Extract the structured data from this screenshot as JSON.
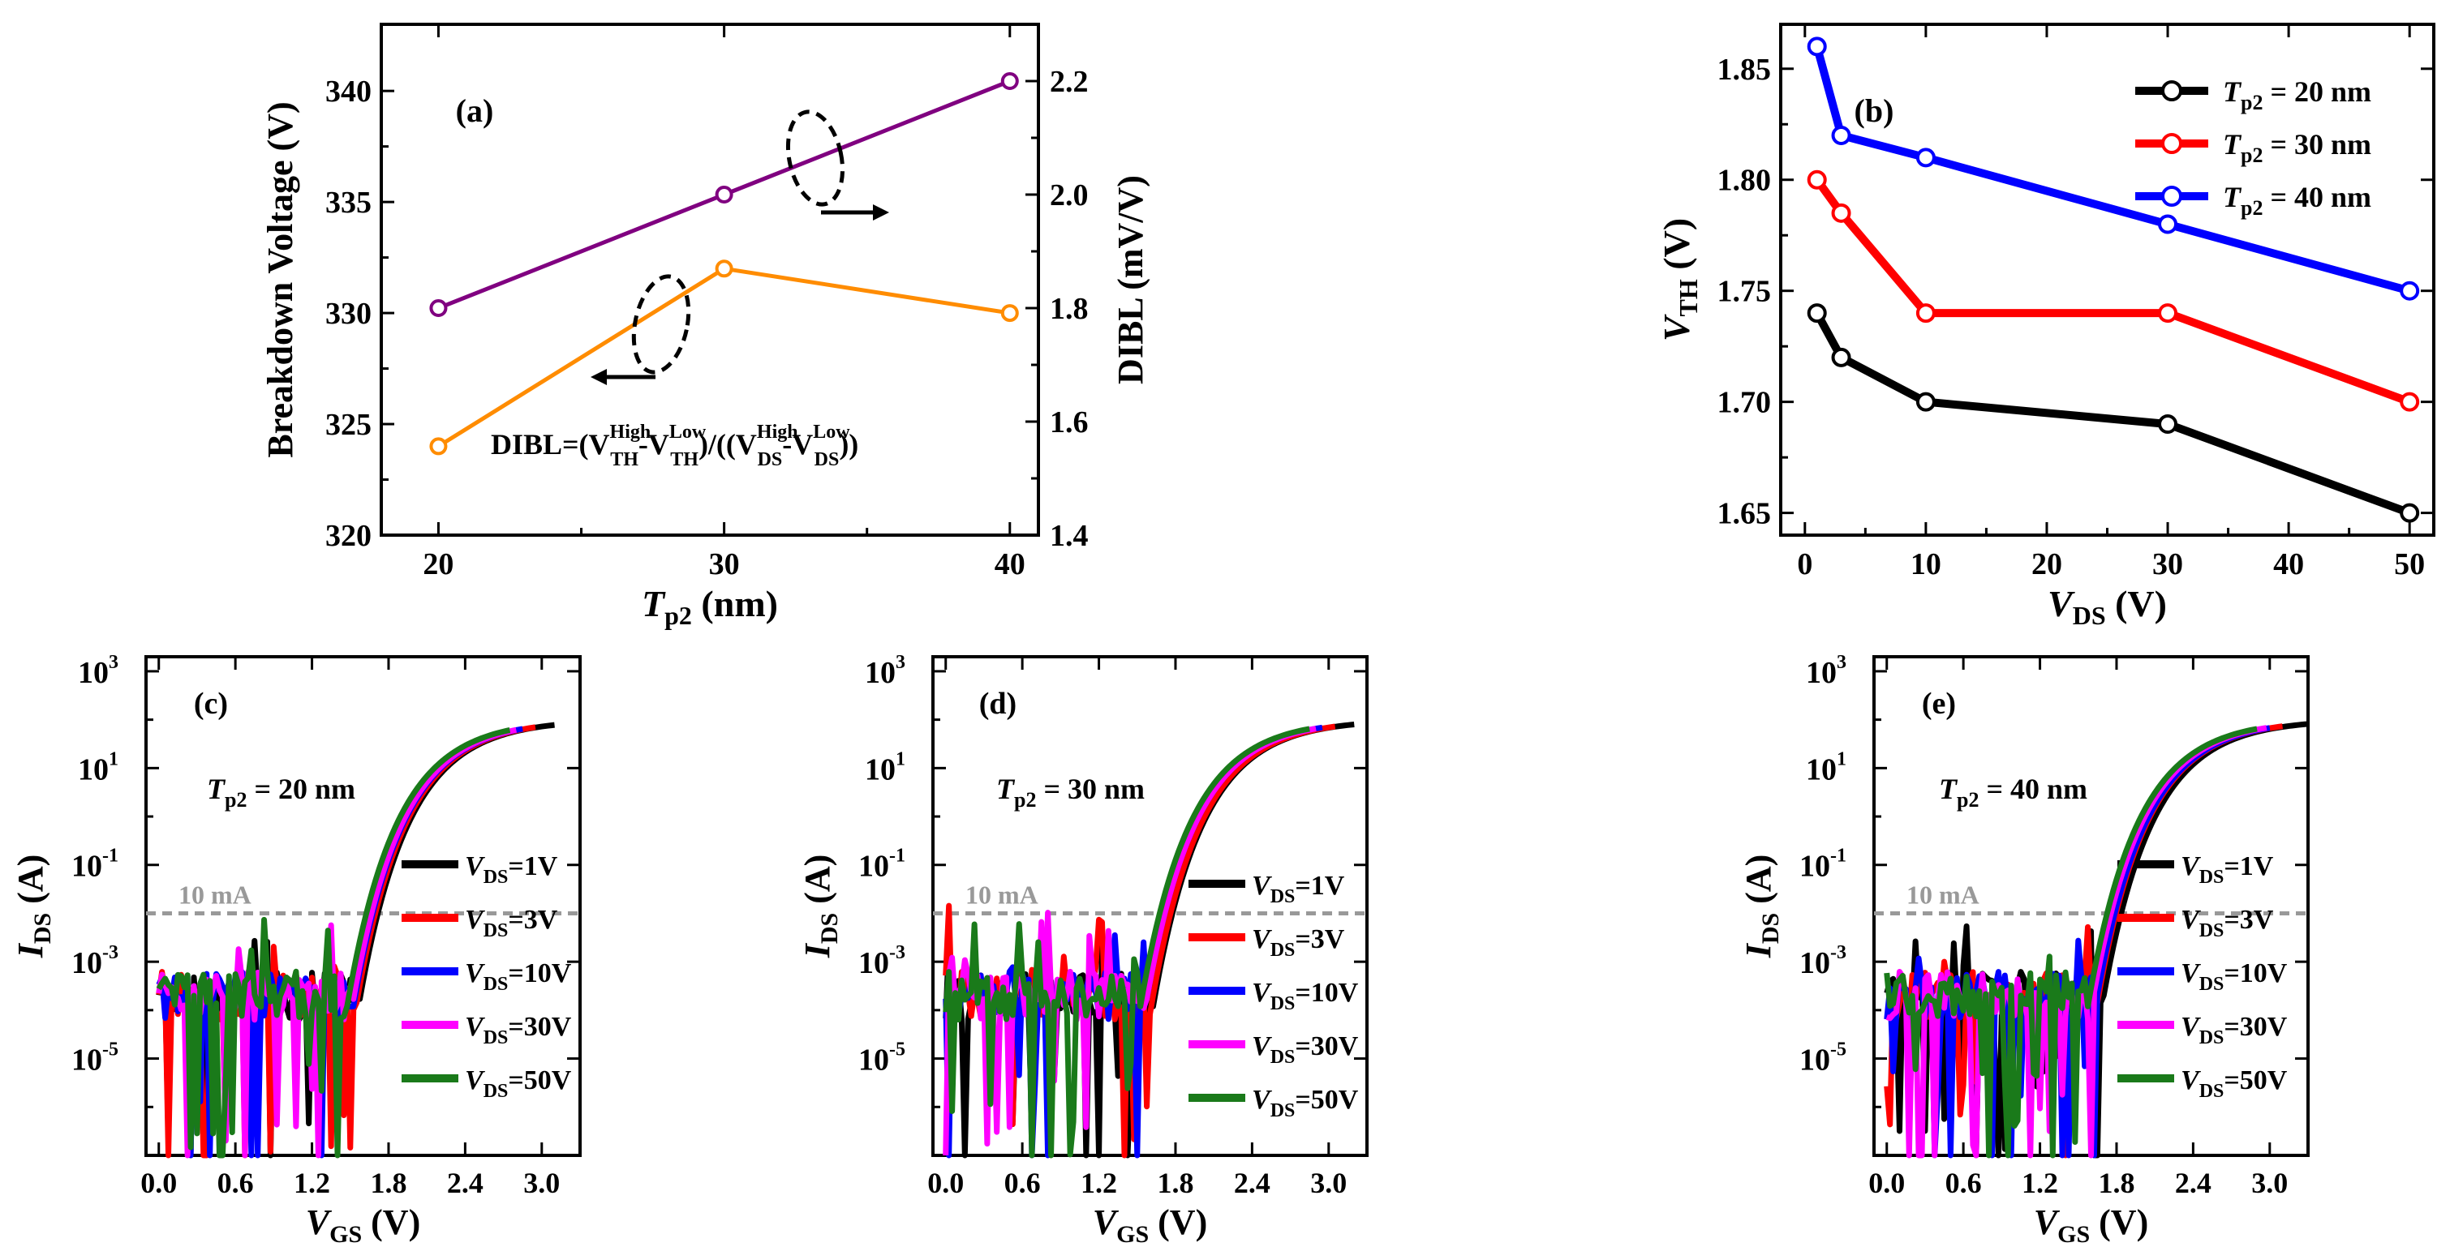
{
  "chart_data": [
    {
      "type": "line",
      "panel": "(a)",
      "xlabel": "T",
      "xlabel_sub": "p2",
      "xlabel_unit": " (nm)",
      "ylabel_left": "Breakdown Voltage (V)",
      "ylabel_right": "DIBL (mV/V)",
      "xlim": [
        18,
        41
      ],
      "ylim_left": [
        320,
        343
      ],
      "ylim_right": [
        1.4,
        2.3
      ],
      "xticks": [
        "20",
        "30",
        "40"
      ],
      "yticks_left": [
        "320",
        "325",
        "330",
        "335",
        "340"
      ],
      "yticks_right": [
        "1.4",
        "1.6",
        "1.8",
        "2.0",
        "2.2"
      ],
      "series": [
        {
          "name": "DIBL",
          "axis": "right",
          "color": "#800080",
          "x": [
            20,
            30,
            40
          ],
          "values": [
            1.8,
            2.0,
            2.2
          ]
        },
        {
          "name": "Breakdown Voltage",
          "axis": "left",
          "color": "#ff8c00",
          "x": [
            20,
            30,
            40
          ],
          "values": [
            324,
            332,
            330
          ]
        }
      ],
      "formula": {
        "prefix": "DIBL=(V",
        "th_high_sup": "High",
        "th_sub": "TH",
        "dash": "-V",
        "th_low_sup": "Low",
        "mid": ")/((V",
        "ds_high_sup": "High",
        "ds_sub": "DS",
        "ds_low_sup": "Low",
        "suffix": "))"
      }
    },
    {
      "type": "line",
      "panel": "(b)",
      "xlabel": "V",
      "xlabel_sub": "DS",
      "xlabel_unit": " (V)",
      "ylabel": "V",
      "ylabel_sub": "TH",
      "ylabel_unit": " (V)",
      "xlim": [
        -2,
        52
      ],
      "ylim": [
        1.64,
        1.87
      ],
      "xticks": [
        "0",
        "10",
        "20",
        "30",
        "40",
        "50"
      ],
      "yticks": [
        "1.65",
        "1.70",
        "1.75",
        "1.80",
        "1.85"
      ],
      "legend_prefix": "T",
      "legend_sub": "p2",
      "series": [
        {
          "name": " = 20 nm",
          "color": "#000000",
          "x": [
            1,
            3,
            10,
            30,
            50
          ],
          "values": [
            1.74,
            1.72,
            1.7,
            1.69,
            1.65
          ]
        },
        {
          "name": " = 30 nm",
          "color": "#ff0000",
          "x": [
            1,
            3,
            10,
            30,
            50
          ],
          "values": [
            1.8,
            1.785,
            1.74,
            1.74,
            1.7
          ]
        },
        {
          "name": " = 40 nm",
          "color": "#0000ff",
          "x": [
            1,
            3,
            10,
            30,
            50
          ],
          "values": [
            1.86,
            1.82,
            1.81,
            1.78,
            1.75
          ]
        }
      ]
    },
    {
      "type": "line",
      "panel": "(c)",
      "scale": "log",
      "seed": 7,
      "annotation": {
        "prefix": "T",
        "sub": "p2",
        "text": " = 20 nm"
      },
      "ref_line": {
        "label": "10 mA",
        "value": 0.01
      },
      "xlabel": "V",
      "xlabel_sub": "GS",
      "xlabel_unit": " (V)",
      "ylabel": "I",
      "ylabel_sub": "DS",
      "ylabel_unit": " (A)",
      "xlim": [
        -0.1,
        3.3
      ],
      "ylim_exp": [
        -7,
        3.3
      ],
      "xticks": [
        "0.0",
        "0.6",
        "1.2",
        "1.8",
        "2.4",
        "3.0"
      ],
      "yticks": [
        {
          "base": "10",
          "exp": "3"
        },
        {
          "base": "10",
          "exp": "1"
        },
        {
          "base": "10",
          "exp": "-1"
        },
        {
          "base": "10",
          "exp": "-3"
        },
        {
          "base": "10",
          "exp": "-5"
        }
      ],
      "series": [
        {
          "name": "=1V",
          "color": "#000000",
          "vth": 1.74,
          "vmax": 3.12
        },
        {
          "name": "=3V",
          "color": "#ff0000",
          "vth": 1.72,
          "vmax": 2.95
        },
        {
          "name": "=10V",
          "color": "#0000ff",
          "vth": 1.7,
          "vmax": 2.85
        },
        {
          "name": "=30V",
          "color": "#ff00ff",
          "vth": 1.69,
          "vmax": 2.8
        },
        {
          "name": "=50V",
          "color": "#1a7a1a",
          "vth": 1.65,
          "vmax": 2.75
        }
      ]
    },
    {
      "type": "line",
      "panel": "(d)",
      "scale": "log",
      "seed": 19,
      "annotation": {
        "prefix": "T",
        "sub": "p2",
        "text": " = 30 nm"
      },
      "ref_line": {
        "label": "10 mA",
        "value": 0.01
      },
      "xlabel": "V",
      "xlabel_sub": "GS",
      "xlabel_unit": " (V)",
      "ylabel": "I",
      "ylabel_sub": "DS",
      "ylabel_unit": " (A)",
      "xlim": [
        -0.1,
        3.3
      ],
      "ylim_exp": [
        -7,
        3.3
      ],
      "xticks": [
        "0.0",
        "0.6",
        "1.2",
        "1.8",
        "2.4",
        "3.0"
      ],
      "yticks": [
        {
          "base": "10",
          "exp": "3"
        },
        {
          "base": "10",
          "exp": "1"
        },
        {
          "base": "10",
          "exp": "-1"
        },
        {
          "base": "10",
          "exp": "-3"
        },
        {
          "base": "10",
          "exp": "-5"
        }
      ],
      "series": [
        {
          "name": "=1V",
          "color": "#000000",
          "vth": 1.8,
          "vmax": 3.22
        },
        {
          "name": "=3V",
          "color": "#ff0000",
          "vth": 1.785,
          "vmax": 3.05
        },
        {
          "name": "=10V",
          "color": "#0000ff",
          "vth": 1.74,
          "vmax": 2.95
        },
        {
          "name": "=30V",
          "color": "#ff00ff",
          "vth": 1.74,
          "vmax": 2.9
        },
        {
          "name": "=50V",
          "color": "#1a7a1a",
          "vth": 1.7,
          "vmax": 2.85
        }
      ]
    },
    {
      "type": "line",
      "panel": "(e)",
      "scale": "log",
      "seed": 31,
      "annotation": {
        "prefix": "T",
        "sub": "p2",
        "text": " = 40 nm"
      },
      "ref_line": {
        "label": "10 mA",
        "value": 0.01
      },
      "xlabel": "V",
      "xlabel_sub": "GS",
      "xlabel_unit": " (V)",
      "ylabel": "I",
      "ylabel_sub": "DS",
      "ylabel_unit": " (A)",
      "xlim": [
        -0.1,
        3.3
      ],
      "ylim_exp": [
        -7,
        3.3
      ],
      "xticks": [
        "0.0",
        "0.6",
        "1.2",
        "1.8",
        "2.4",
        "3.0"
      ],
      "yticks": [
        {
          "base": "10",
          "exp": "3"
        },
        {
          "base": "10",
          "exp": "1"
        },
        {
          "base": "10",
          "exp": "-1"
        },
        {
          "base": "10",
          "exp": "-3"
        },
        {
          "base": "10",
          "exp": "-5"
        }
      ],
      "series": [
        {
          "name": "=1V",
          "color": "#000000",
          "vth": 1.86,
          "vmax": 3.3
        },
        {
          "name": "=3V",
          "color": "#ff0000",
          "vth": 1.82,
          "vmax": 3.12
        },
        {
          "name": "=10V",
          "color": "#0000ff",
          "vth": 1.81,
          "vmax": 3.02
        },
        {
          "name": "=30V",
          "color": "#ff00ff",
          "vth": 1.78,
          "vmax": 2.98
        },
        {
          "name": "=50V",
          "color": "#1a7a1a",
          "vth": 1.75,
          "vmax": 2.92
        }
      ]
    }
  ],
  "legend_prefix_cde": "V",
  "legend_sub_cde": "DS"
}
